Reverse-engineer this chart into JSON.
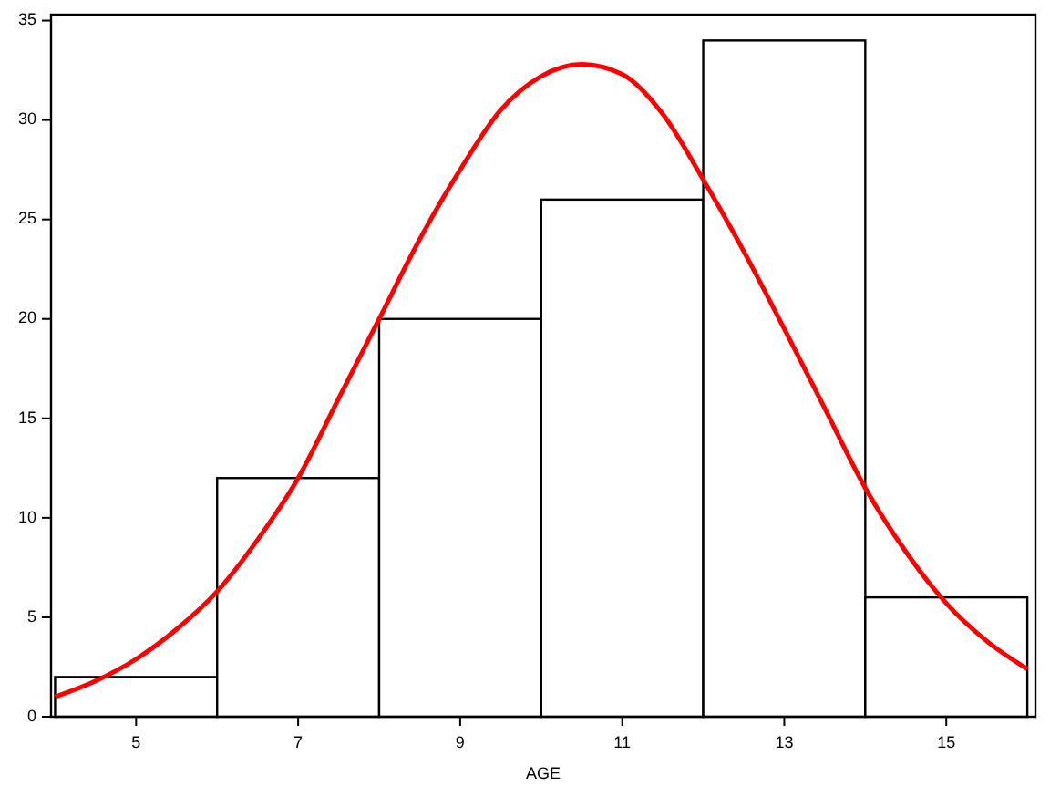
{
  "chart_data": {
    "type": "histogram",
    "xlabel": "AGE",
    "bins": [
      4,
      6,
      8,
      10,
      12,
      14,
      16
    ],
    "values": [
      2,
      12,
      20,
      26,
      34,
      6
    ],
    "color": "#ffffff",
    "series": [
      {
        "type": "line",
        "color": "#ff0000",
        "x": [
          4,
          4.5,
          5,
          5.5,
          6,
          6.5,
          7,
          7.5,
          8,
          8.5,
          9,
          9.5,
          10,
          10.5,
          11,
          11.5,
          12,
          12.5,
          13,
          13.5,
          14,
          14.5,
          15,
          15.5,
          16
        ],
        "values": [
          1,
          1.8,
          2.9,
          4.4,
          6.3,
          8.9,
          12,
          16,
          20,
          24,
          27.5,
          30.5,
          32.2,
          32.8,
          32.3,
          30.3,
          27,
          23.4,
          19.5,
          15.5,
          11.5,
          8.3,
          5.7,
          3.8,
          2.4
        ]
      }
    ],
    "xlim": [
      3.95,
      16.1
    ],
    "ylim": [
      0,
      35.3
    ],
    "xticks": [
      5,
      7,
      9,
      11,
      13,
      15
    ],
    "yticks": [
      0,
      5,
      10,
      15,
      20,
      25,
      30,
      35
    ],
    "grid": false,
    "marker": "none",
    "line_style": "solid"
  }
}
